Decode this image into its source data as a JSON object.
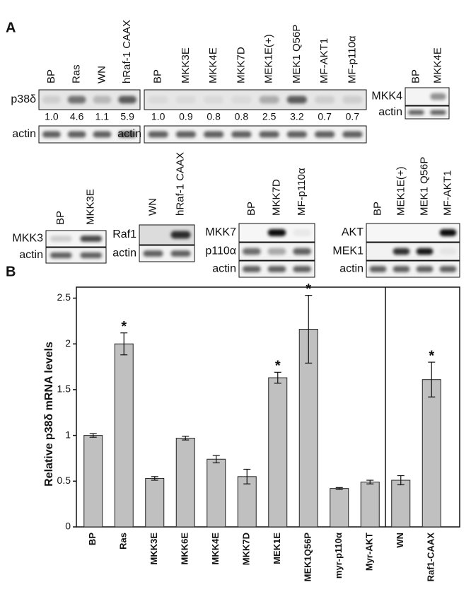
{
  "panel_a": {
    "label": "A",
    "blots": [
      {
        "lanes": [
          "BP",
          "Ras",
          "WN",
          "hRaf-1 CAAX"
        ],
        "rows": [
          "p38δ",
          "actin"
        ],
        "quantification": [
          "1.0",
          "4.6",
          "1.1",
          "5.9"
        ]
      },
      {
        "lanes": [
          "BP",
          "MKK3E",
          "MKK4E",
          "MKK7D",
          "MEK1E(+)",
          "MEK1 Q56P",
          "MF-AKT1",
          "MF-p110α"
        ],
        "rows": [
          "actin"
        ],
        "quantification": [
          "1.0",
          "0.9",
          "0.8",
          "0.8",
          "2.5",
          "3.2",
          "0.7",
          "0.7"
        ]
      },
      {
        "lanes": [
          "BP",
          "MKK4E"
        ],
        "rows": [
          "MKK4",
          "actin"
        ]
      },
      {
        "lanes": [
          "BP",
          "MKK3E"
        ],
        "rows": [
          "MKK3",
          "actin"
        ]
      },
      {
        "lanes": [
          "WN",
          "hRaf-1 CAAX"
        ],
        "rows": [
          "Raf1",
          "actin"
        ]
      },
      {
        "lanes": [
          "BP",
          "MKK7D",
          "MF-p110α"
        ],
        "rows": [
          "MKK7",
          "p110α",
          "actin"
        ]
      },
      {
        "lanes": [
          "BP",
          "MEK1E(+)",
          "MEK1 Q56P",
          "MF-AKT1"
        ],
        "rows": [
          "AKT",
          "MEK1",
          "actin"
        ]
      }
    ]
  },
  "chart_data": {
    "type": "bar",
    "panel_label": "B",
    "y_label": "Relative p38δ mRNA levels",
    "categories": [
      "BP",
      "Ras",
      "MKK3E",
      "MKK6E",
      "MKK4E",
      "MKK7D",
      "MEK1E",
      "MEK1Q56P",
      "myr-p110α",
      "Myr-AKT",
      "WN",
      "Raf1-CAAX"
    ],
    "values": [
      1.0,
      2.0,
      0.53,
      0.97,
      0.74,
      0.55,
      1.63,
      2.16,
      0.42,
      0.49,
      0.51,
      1.61
    ],
    "errors": [
      0.02,
      0.12,
      0.02,
      0.02,
      0.04,
      0.08,
      0.06,
      0.37,
      0.01,
      0.02,
      0.05,
      0.19
    ],
    "significance": [
      null,
      "*",
      null,
      null,
      null,
      null,
      "*",
      "*",
      null,
      null,
      null,
      "*"
    ],
    "color": "#c0c0c0",
    "ylim": [
      0,
      2.62
    ],
    "yticks": [
      0,
      0.5,
      1,
      1.5,
      2,
      2.5
    ]
  }
}
